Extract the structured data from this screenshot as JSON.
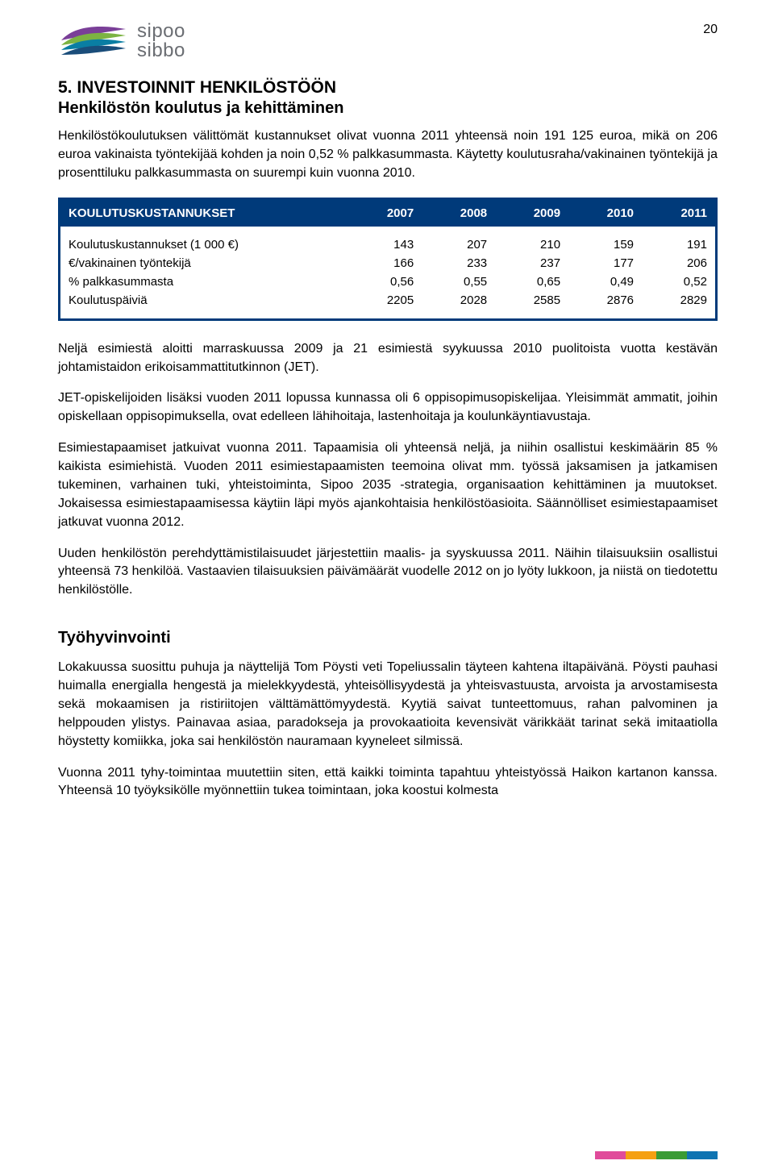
{
  "page_number": "20",
  "logo": {
    "line1": "sipoo",
    "line2": "sibbo",
    "swoosh_colors": [
      "#7a3f98",
      "#7cb342",
      "#0a7ea3",
      "#1a4d7a"
    ]
  },
  "heading": "5. INVESTOINNIT HENKILÖSTÖÖN",
  "subheading": "Henkilöstön koulutus ja kehittäminen",
  "intro_para1": "Henkilöstökoulutuksen välittömät kustannukset olivat vuonna 2011 yhteensä noin 191 125 euroa, mikä on 206 euroa vakinaista työntekijää kohden ja noin 0,52 % palkkasummasta. Käytetty koulutusraha/vakinainen työntekijä ja prosenttiluku palkkasummasta on suurempi kuin vuonna 2010.",
  "table": {
    "header_bg": "#003a7a",
    "header_fg": "#ffffff",
    "border_color": "#003a7a",
    "title": "KOULUTUSKUSTANNUKSET",
    "years": [
      "2007",
      "2008",
      "2009",
      "2010",
      "2011"
    ],
    "rows": [
      {
        "label": "Koulutuskustannukset (1 000 €)",
        "vals": [
          "143",
          "207",
          "210",
          "159",
          "191"
        ]
      },
      {
        "label": "€/vakinainen työntekijä",
        "vals": [
          "166",
          "233",
          "237",
          "177",
          "206"
        ]
      },
      {
        "label": "% palkkasummasta",
        "vals": [
          "0,56",
          "0,55",
          "0,65",
          "0,49",
          "0,52"
        ]
      },
      {
        "label": "Koulutuspäiviä",
        "vals": [
          "2205",
          "2028",
          "2585",
          "2876",
          "2829"
        ]
      }
    ]
  },
  "para_after_table_1": "Neljä esimiestä aloitti marraskuussa 2009 ja 21 esimiestä syykuussa 2010 puolitoista vuotta kestävän johtamistaidon erikoisammattitutkinnon (JET).",
  "para_after_table_2": "JET-opiskelijoiden lisäksi vuoden 2011 lopussa kunnassa oli 6 oppisopimusopiskelijaa. Yleisimmät ammatit, joihin opiskellaan oppisopimuksella, ovat edelleen lähihoitaja, lastenhoitaja ja koulunkäyntiavustaja.",
  "para_after_table_3": "Esimiestapaamiset jatkuivat vuonna 2011. Tapaamisia oli yhteensä neljä, ja niihin osallistui keskimäärin 85 % kaikista esimiehistä. Vuoden 2011 esimiestapaamisten teemoina olivat mm. työssä jaksamisen ja jatkamisen tukeminen, varhainen tuki, yhteistoiminta, Sipoo 2035 -strategia, organisaation kehittäminen ja muutokset. Jokaisessa esimiestapaamisessa käytiin läpi myös ajankohtaisia henkilöstöasioita. Säännölliset esimiestapaamiset jatkuvat vuonna 2012.",
  "para_after_table_4": "Uuden henkilöstön perehdyttämistilaisuudet järjestettiin maalis- ja syyskuussa 2011. Näihin tilaisuuksiin osallistui yhteensä 73 henkilöä. Vastaavien tilaisuuksien päivämäärät vuodelle 2012 on jo lyöty lukkoon, ja niistä on tiedotettu henkilöstölle.",
  "section2_heading": "Työhyvinvointi",
  "section2_para1": "Lokakuussa suosittu puhuja ja näyttelijä Tom Pöysti veti Topeliussalin täyteen kahtena iltapäivänä. Pöysti pauhasi huimalla energialla hengestä ja mielekkyydestä, yhteisöllisyydestä ja yhteisvastuusta, arvoista ja arvostamisesta sekä mokaamisen ja ristiriitojen välttämättömyydestä. Kyytiä saivat tunteettomuus, rahan palvominen ja helppouden ylistys. Painavaa asiaa, paradokseja ja provokaatioita kevensivät värikkäät tarinat sekä imitaatiolla höystetty komiikka, joka sai henkilöstön nauramaan kyyneleet silmissä.",
  "section2_para2": "Vuonna 2011 tyhy-toimintaa muutettiin siten, että kaikki toiminta tapahtuu yhteistyössä Haikon kartanon kanssa. Yhteensä 10 työyksikölle myönnettiin tukea toimintaan, joka koostui kolmesta",
  "footer_stripe_colors": [
    "#e04b9a",
    "#f5a012",
    "#3b9b35",
    "#0f74b2"
  ]
}
